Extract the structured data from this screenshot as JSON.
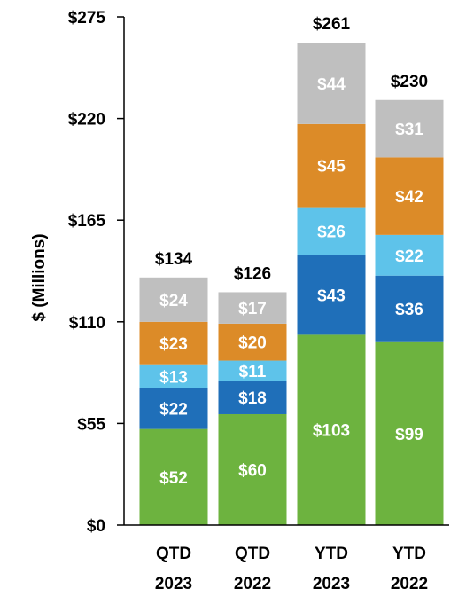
{
  "chart_data": {
    "type": "bar",
    "stacked": true,
    "title": "",
    "xlabel": "",
    "ylabel": "$ (Millions)",
    "ylim": [
      0,
      275
    ],
    "yticks": [
      0,
      55,
      110,
      165,
      220,
      275
    ],
    "ytick_labels": [
      "$0",
      "$55",
      "$110",
      "$165",
      "$220",
      "$275"
    ],
    "categories": [
      [
        "QTD",
        "2023"
      ],
      [
        "QTD",
        "2022"
      ],
      [
        "YTD",
        "2023"
      ],
      [
        "YTD",
        "2022"
      ]
    ],
    "series": [
      {
        "color": "#6db33f",
        "values": [
          52,
          60,
          103,
          99
        ],
        "labels": [
          "$52",
          "$60",
          "$103",
          "$99"
        ]
      },
      {
        "color": "#1f6fb9",
        "values": [
          22,
          18,
          43,
          36
        ],
        "labels": [
          "$22",
          "$18",
          "$43",
          "$36"
        ]
      },
      {
        "color": "#5ec3ea",
        "values": [
          13,
          11,
          26,
          22
        ],
        "labels": [
          "$13",
          "$11",
          "$26",
          "$22"
        ]
      },
      {
        "color": "#dc8b28",
        "values": [
          23,
          20,
          45,
          42
        ],
        "labels": [
          "$23",
          "$20",
          "$45",
          "$42"
        ]
      },
      {
        "color": "#bfbfbf",
        "values": [
          24,
          17,
          44,
          31
        ],
        "labels": [
          "$24",
          "$17",
          "$44",
          "$31"
        ]
      }
    ],
    "totals": [
      134,
      126,
      261,
      230
    ],
    "total_labels": [
      "$134",
      "$126",
      "$261",
      "$230"
    ],
    "grid": false,
    "legend": "none"
  }
}
